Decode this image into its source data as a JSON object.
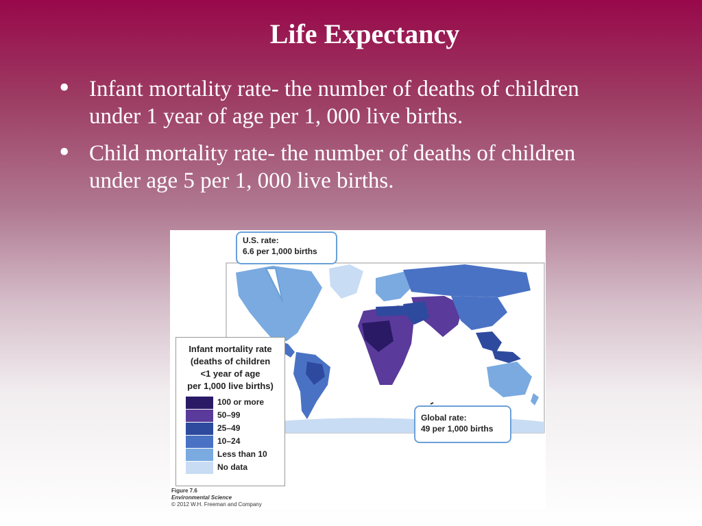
{
  "slide": {
    "title": "Life Expectancy",
    "bullets": [
      {
        "line1": "Infant mortality rate- the number of deaths of children",
        "line2": "under 1 year of age per 1, 000 live births."
      },
      {
        "line1": "Child mortality rate- the number of deaths of children",
        "line2": "under age 5 per 1, 000 live births."
      }
    ]
  },
  "figure": {
    "us_callout": {
      "line1": "U.S. rate:",
      "line2": "6.6 per 1,000 births"
    },
    "global_callout": {
      "line1": "Global rate:",
      "line2": "49 per 1,000 births"
    },
    "legend": {
      "title_lines": [
        "Infant mortality rate",
        "(deaths of children",
        "<1 year of age",
        "per 1,000 live births)"
      ],
      "items": [
        {
          "label": "100 or more",
          "color": "#2a1a66"
        },
        {
          "label": "50–99",
          "color": "#5a3a9a"
        },
        {
          "label": "25–49",
          "color": "#2e4a9e"
        },
        {
          "label": "10–24",
          "color": "#4a72c4"
        },
        {
          "label": "Less than 10",
          "color": "#7aaae0"
        },
        {
          "label": "No data",
          "color": "#c8dcf4"
        }
      ]
    },
    "caption": {
      "figure": "Figure 7.6",
      "book": "Environmental Science",
      "copyright": "© 2012 W.H. Freeman and Company"
    }
  }
}
